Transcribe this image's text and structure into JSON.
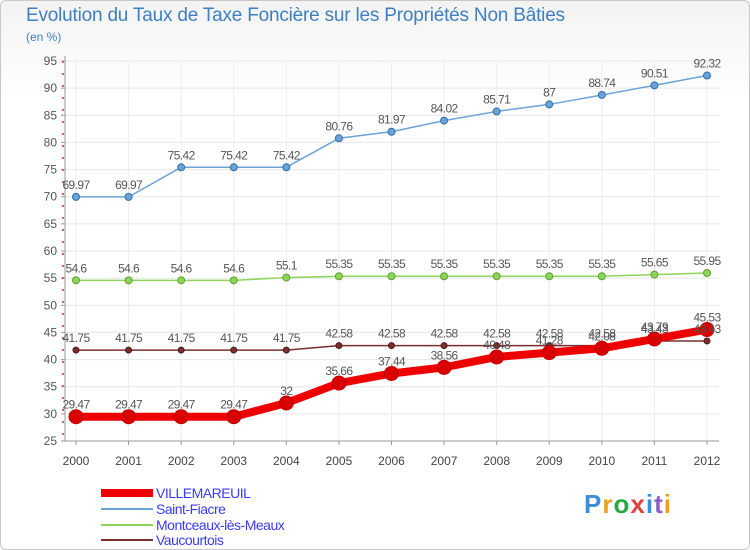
{
  "chart_data": {
    "type": "line",
    "title": "Evolution du Taux de Taxe Foncière sur les Propriétés Non Bâties",
    "subtitle": "(en %)",
    "x": [
      "2000",
      "2001",
      "2002",
      "2003",
      "2004",
      "2005",
      "2006",
      "2007",
      "2008",
      "2009",
      "2010",
      "2011",
      "2012"
    ],
    "ylim": [
      25,
      95
    ],
    "yticks": [
      25,
      30,
      35,
      40,
      45,
      50,
      55,
      60,
      65,
      70,
      75,
      80,
      85,
      90,
      95
    ],
    "grid": true,
    "legend_position": "bottom-left",
    "series": [
      {
        "name": "VILLEMAREUIL",
        "color": "#ee0000",
        "labels": [
          "29.47",
          "29.47",
          "29.47",
          "29.47",
          "32",
          "35.66",
          "37.44",
          "38.56",
          "40.48",
          "41.28",
          "42.08",
          "43.79",
          "45.53"
        ],
        "values": [
          29.47,
          29.47,
          29.47,
          29.47,
          32,
          35.66,
          37.44,
          38.56,
          40.48,
          41.28,
          42.08,
          43.79,
          45.53
        ]
      },
      {
        "name": "Saint-Fiacre",
        "color": "#6ba3d6",
        "labels": [
          "69.97",
          "69.97",
          "75.42",
          "75.42",
          "75.42",
          "80.76",
          "81.97",
          "84.02",
          "85.71",
          "87",
          "88.74",
          "90.51",
          "92.32"
        ],
        "values": [
          69.97,
          69.97,
          75.42,
          75.42,
          75.42,
          80.76,
          81.97,
          84.02,
          85.71,
          87,
          88.74,
          90.51,
          92.32
        ]
      },
      {
        "name": "Montceaux-lès-Meaux",
        "color": "#8ed35b",
        "labels": [
          "54.6",
          "54.6",
          "54.6",
          "54.6",
          "55.1",
          "55.35",
          "55.35",
          "55.35",
          "55.35",
          "55.35",
          "55.35",
          "55.65",
          "55.95"
        ],
        "values": [
          54.6,
          54.6,
          54.6,
          54.6,
          55.1,
          55.35,
          55.35,
          55.35,
          55.35,
          55.35,
          55.35,
          55.65,
          55.95
        ]
      },
      {
        "name": "Vaucourtois",
        "color": "#7a2e2e",
        "labels": [
          "41.75",
          "41.75",
          "41.75",
          "41.75",
          "41.75",
          "42.58",
          "42.58",
          "42.58",
          "42.58",
          "42.58",
          "42.58",
          "43.43",
          "43.43"
        ],
        "values": [
          41.75,
          41.75,
          41.75,
          41.75,
          41.75,
          42.58,
          42.58,
          42.58,
          42.58,
          42.58,
          42.58,
          43.43,
          43.43
        ]
      }
    ]
  },
  "brand": {
    "p": "P",
    "r": "r",
    "o": "o",
    "x": "x",
    "i": "i",
    "t": "t",
    "i2": "i"
  }
}
